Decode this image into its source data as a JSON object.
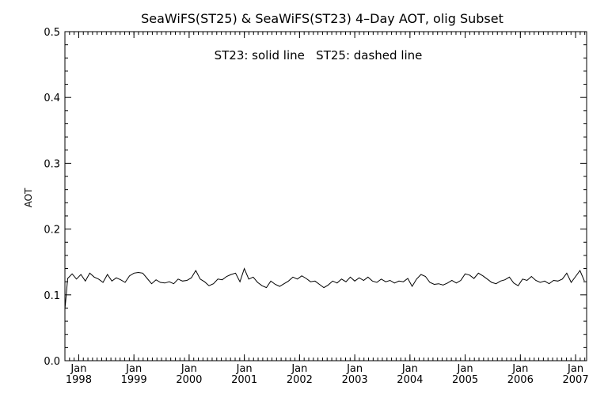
{
  "chart_data": {
    "type": "line",
    "title": "SeaWiFS(ST25) & SeaWiFS(ST23) 4–Day AOT, olig Subset",
    "annotation": "ST23: solid line   ST25: dashed line",
    "ylabel": "AOT",
    "xlabel": "",
    "ylim": [
      0.0,
      0.5
    ],
    "xlim": [
      1997.75,
      2007.2
    ],
    "y_ticks": [
      "0.0",
      "0.1",
      "0.2",
      "0.3",
      "0.4",
      "0.5"
    ],
    "x_ticks": [
      {
        "month": "Jan",
        "year": "1998"
      },
      {
        "month": "Jan",
        "year": "1999"
      },
      {
        "month": "Jan",
        "year": "2000"
      },
      {
        "month": "Jan",
        "year": "2001"
      },
      {
        "month": "Jan",
        "year": "2002"
      },
      {
        "month": "Jan",
        "year": "2003"
      },
      {
        "month": "Jan",
        "year": "2004"
      },
      {
        "month": "Jan",
        "year": "2005"
      },
      {
        "month": "Jan",
        "year": "2006"
      },
      {
        "month": "Jan",
        "year": "2007"
      }
    ],
    "series": [
      {
        "style": "solid",
        "x": [
          1997.75,
          1997.8,
          1997.88,
          1997.96,
          1998.04,
          1998.12,
          1998.2,
          1998.28,
          1998.36,
          1998.44,
          1998.52,
          1998.6,
          1998.68,
          1998.76,
          1998.84,
          1998.92,
          1999.0,
          1999.08,
          1999.16,
          1999.24,
          1999.32,
          1999.4,
          1999.48,
          1999.56,
          1999.64,
          1999.72,
          1999.8,
          1999.88,
          1999.96,
          2000.04,
          2000.12,
          2000.2,
          2000.28,
          2000.36,
          2000.44,
          2000.52,
          2000.6,
          2000.68,
          2000.76,
          2000.84,
          2000.92,
          2001.0,
          2001.08,
          2001.16,
          2001.24,
          2001.32,
          2001.4,
          2001.48,
          2001.56,
          2001.64,
          2001.72,
          2001.8,
          2001.88,
          2001.96,
          2002.04,
          2002.12,
          2002.2,
          2002.28,
          2002.36,
          2002.44,
          2002.52,
          2002.6,
          2002.68,
          2002.76,
          2002.84,
          2002.92,
          2003.0,
          2003.08,
          2003.16,
          2003.24,
          2003.32,
          2003.4,
          2003.48,
          2003.56,
          2003.64,
          2003.72,
          2003.8,
          2003.88,
          2003.96,
          2004.04,
          2004.12,
          2004.2,
          2004.28,
          2004.36,
          2004.44,
          2004.52,
          2004.6,
          2004.68,
          2004.76,
          2004.84,
          2004.92,
          2005.0,
          2005.08,
          2005.16,
          2005.24,
          2005.32,
          2005.4,
          2005.48,
          2005.56,
          2005.64,
          2005.72,
          2005.8,
          2005.88,
          2005.96,
          2006.04,
          2006.12,
          2006.2,
          2006.28,
          2006.36,
          2006.44,
          2006.52,
          2006.6,
          2006.68,
          2006.76,
          2006.84,
          2006.92,
          2007.0,
          2007.08,
          2007.16
        ],
        "y": [
          0.078,
          0.125,
          0.132,
          0.124,
          0.131,
          0.121,
          0.133,
          0.127,
          0.124,
          0.119,
          0.131,
          0.121,
          0.126,
          0.123,
          0.119,
          0.129,
          0.133,
          0.134,
          0.133,
          0.125,
          0.117,
          0.123,
          0.119,
          0.118,
          0.12,
          0.117,
          0.124,
          0.121,
          0.122,
          0.126,
          0.137,
          0.124,
          0.12,
          0.114,
          0.117,
          0.124,
          0.123,
          0.128,
          0.131,
          0.133,
          0.12,
          0.14,
          0.124,
          0.127,
          0.119,
          0.114,
          0.111,
          0.121,
          0.116,
          0.113,
          0.117,
          0.121,
          0.127,
          0.124,
          0.129,
          0.125,
          0.12,
          0.121,
          0.116,
          0.111,
          0.115,
          0.121,
          0.118,
          0.124,
          0.12,
          0.127,
          0.121,
          0.126,
          0.122,
          0.127,
          0.121,
          0.119,
          0.124,
          0.12,
          0.122,
          0.118,
          0.121,
          0.12,
          0.125,
          0.113,
          0.124,
          0.131,
          0.128,
          0.119,
          0.116,
          0.117,
          0.115,
          0.118,
          0.122,
          0.118,
          0.122,
          0.132,
          0.13,
          0.125,
          0.133,
          0.129,
          0.124,
          0.119,
          0.117,
          0.121,
          0.123,
          0.127,
          0.118,
          0.114,
          0.124,
          0.122,
          0.128,
          0.122,
          0.119,
          0.121,
          0.117,
          0.122,
          0.121,
          0.124,
          0.133,
          0.119,
          0.128,
          0.137,
          0.121
        ]
      }
    ],
    "grid": false,
    "legend": "none"
  }
}
